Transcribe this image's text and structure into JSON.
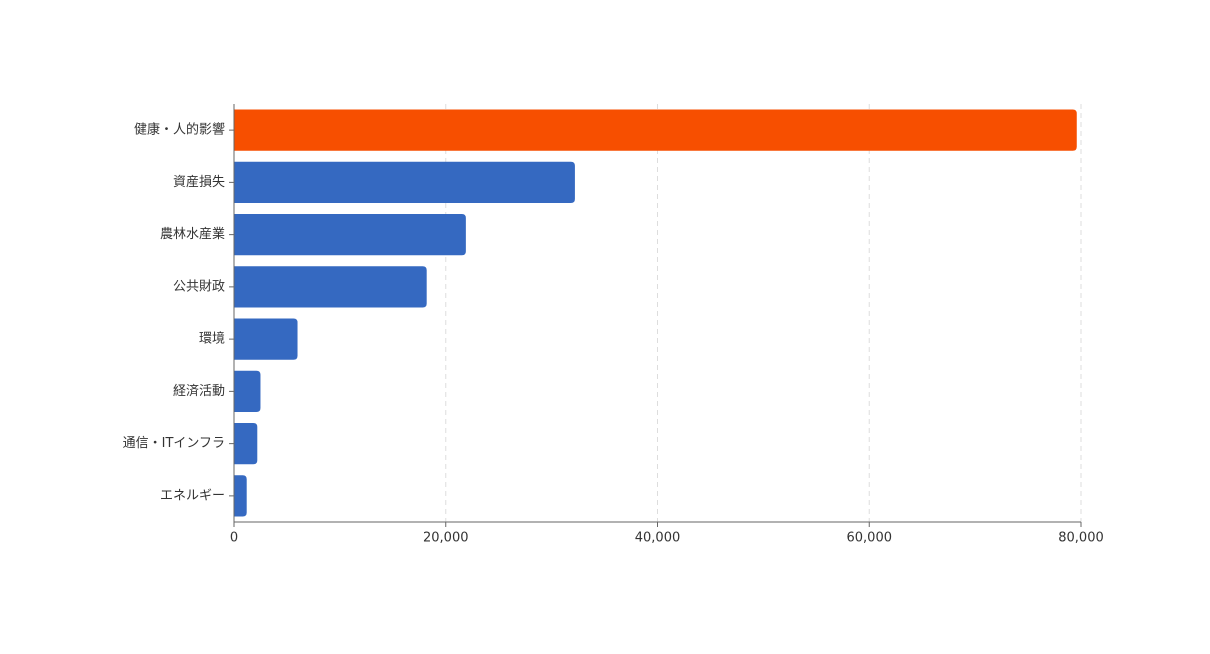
{
  "chart_data": {
    "type": "bar",
    "orientation": "horizontal",
    "categories": [
      "健康・人的影響",
      "資産損失",
      "農林水産業",
      "公共財政",
      "環境",
      "経済活動",
      "通信・ITインフラ",
      "エネルギー"
    ],
    "values": [
      79600,
      32200,
      21900,
      18200,
      6000,
      2500,
      2200,
      1200
    ],
    "colors": [
      "#f74f00",
      "#3569c1",
      "#3569c1",
      "#3569c1",
      "#3569c1",
      "#3569c1",
      "#3569c1",
      "#3569c1"
    ],
    "xlim": [
      0,
      80000
    ],
    "xticks": [
      0,
      {
        "value": 20000,
        "label": "20,000"
      },
      {
        "value": 40000,
        "label": "40,000"
      },
      {
        "value": 60000,
        "label": "60,000"
      },
      {
        "value": 80000,
        "label": "80,000"
      }
    ],
    "grid": true
  }
}
